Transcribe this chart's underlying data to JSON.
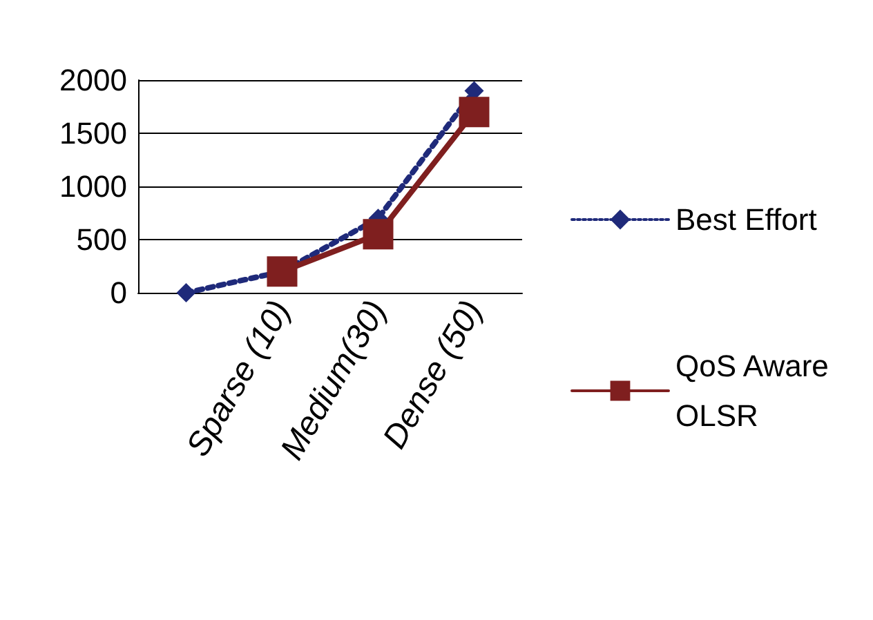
{
  "chart_data": {
    "type": "line",
    "categories": [
      null,
      "Sparse (10)",
      "Medium(30)",
      "Dense (50)"
    ],
    "series": [
      {
        "name": "Best Effort",
        "color": "#1f2a7a",
        "values": [
          0,
          200,
          700,
          1900
        ],
        "marker": "diamond",
        "line_style": "dotted"
      },
      {
        "name": "QoS Aware OLSR",
        "color": "#7f1f1f",
        "values": [
          null,
          200,
          550,
          1700
        ],
        "marker": "square",
        "line_style": "solid"
      }
    ],
    "ylim": [
      0,
      2000
    ],
    "yticks": [
      0,
      500,
      1000,
      1500,
      2000
    ],
    "grid": "y",
    "legend": "right"
  }
}
